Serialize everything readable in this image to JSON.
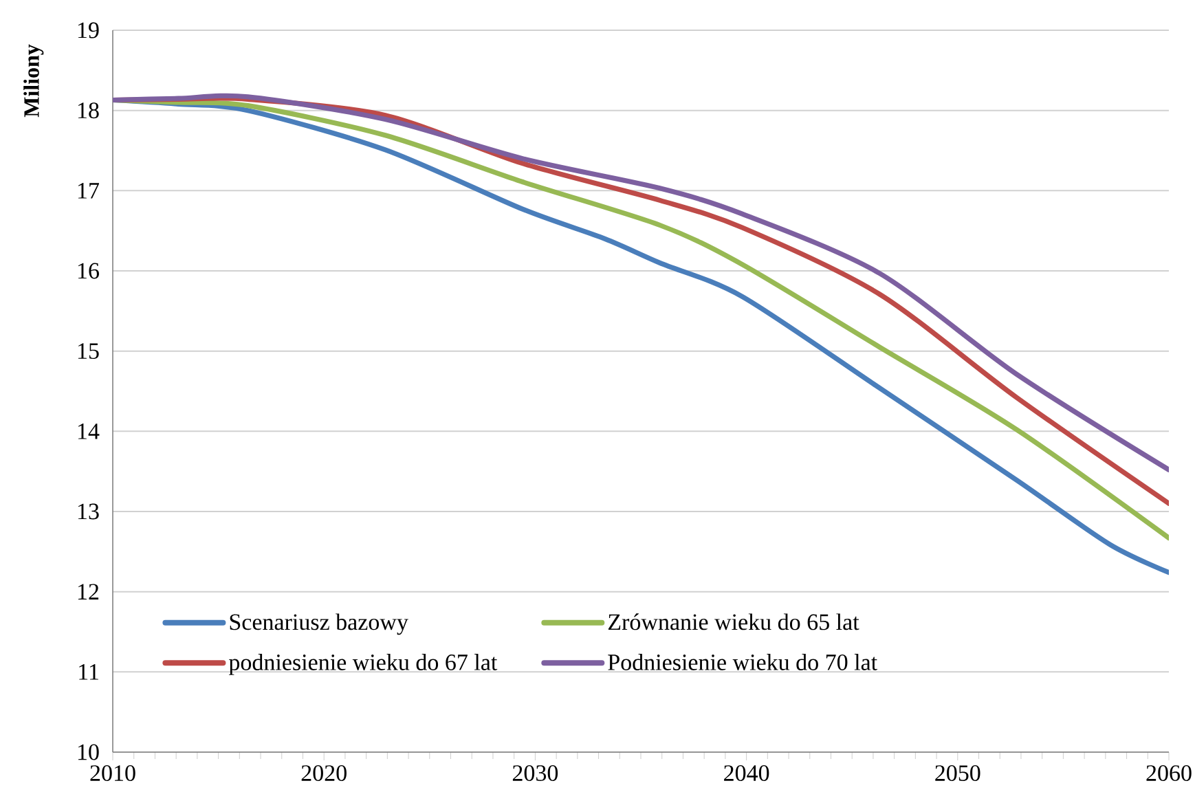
{
  "chart_data": {
    "type": "line",
    "ylabel": "Miliony",
    "xlim": [
      2010,
      2060
    ],
    "ylim": [
      10,
      19
    ],
    "xticks": [
      2010,
      2020,
      2030,
      2040,
      2050,
      2060
    ],
    "yticks": [
      10,
      11,
      12,
      13,
      14,
      15,
      16,
      17,
      18,
      19
    ],
    "grid": "y",
    "legend": "bottom",
    "marker": "none",
    "line_style": "solid",
    "series": [
      {
        "name": "Scenariusz bazowy",
        "color": "#4a7ebb",
        "x": [
          2010,
          2013.1,
          2016.4,
          2022.9,
          2029.4,
          2033.3,
          2035.9,
          2039.8,
          2046.3,
          2052.8,
          2057.2,
          2060
        ],
        "values": [
          18.13,
          18.08,
          18.0,
          17.51,
          16.77,
          16.4,
          16.1,
          15.68,
          14.54,
          13.39,
          12.59,
          12.24
        ]
      },
      {
        "name": "Zrównanie wieku do 65 lat",
        "color": "#98b954",
        "x": [
          2010,
          2013.1,
          2016.4,
          2022.9,
          2029.4,
          2035.9,
          2039.8,
          2046.3,
          2052.8,
          2060
        ],
        "values": [
          18.13,
          18.1,
          18.06,
          17.69,
          17.11,
          16.57,
          16.08,
          15.05,
          14.02,
          12.67
        ]
      },
      {
        "name": "podniesienie wieku do 67 lat",
        "color": "#be4b48",
        "x": [
          2010,
          2013.1,
          2016.4,
          2022.9,
          2029.4,
          2035.9,
          2039.8,
          2046.3,
          2052.8,
          2060
        ],
        "values": [
          18.13,
          18.14,
          18.14,
          17.94,
          17.34,
          16.88,
          16.54,
          15.71,
          14.42,
          13.1
        ]
      },
      {
        "name": "Podniesienie wieku do 70 lat",
        "color": "#7d60a0",
        "x": [
          2010,
          2013.1,
          2016.4,
          2022.9,
          2029.4,
          2035.9,
          2039.8,
          2046.3,
          2052.8,
          2060
        ],
        "values": [
          18.13,
          18.15,
          18.17,
          17.89,
          17.4,
          17.03,
          16.71,
          15.97,
          14.71,
          13.52
        ]
      }
    ]
  }
}
